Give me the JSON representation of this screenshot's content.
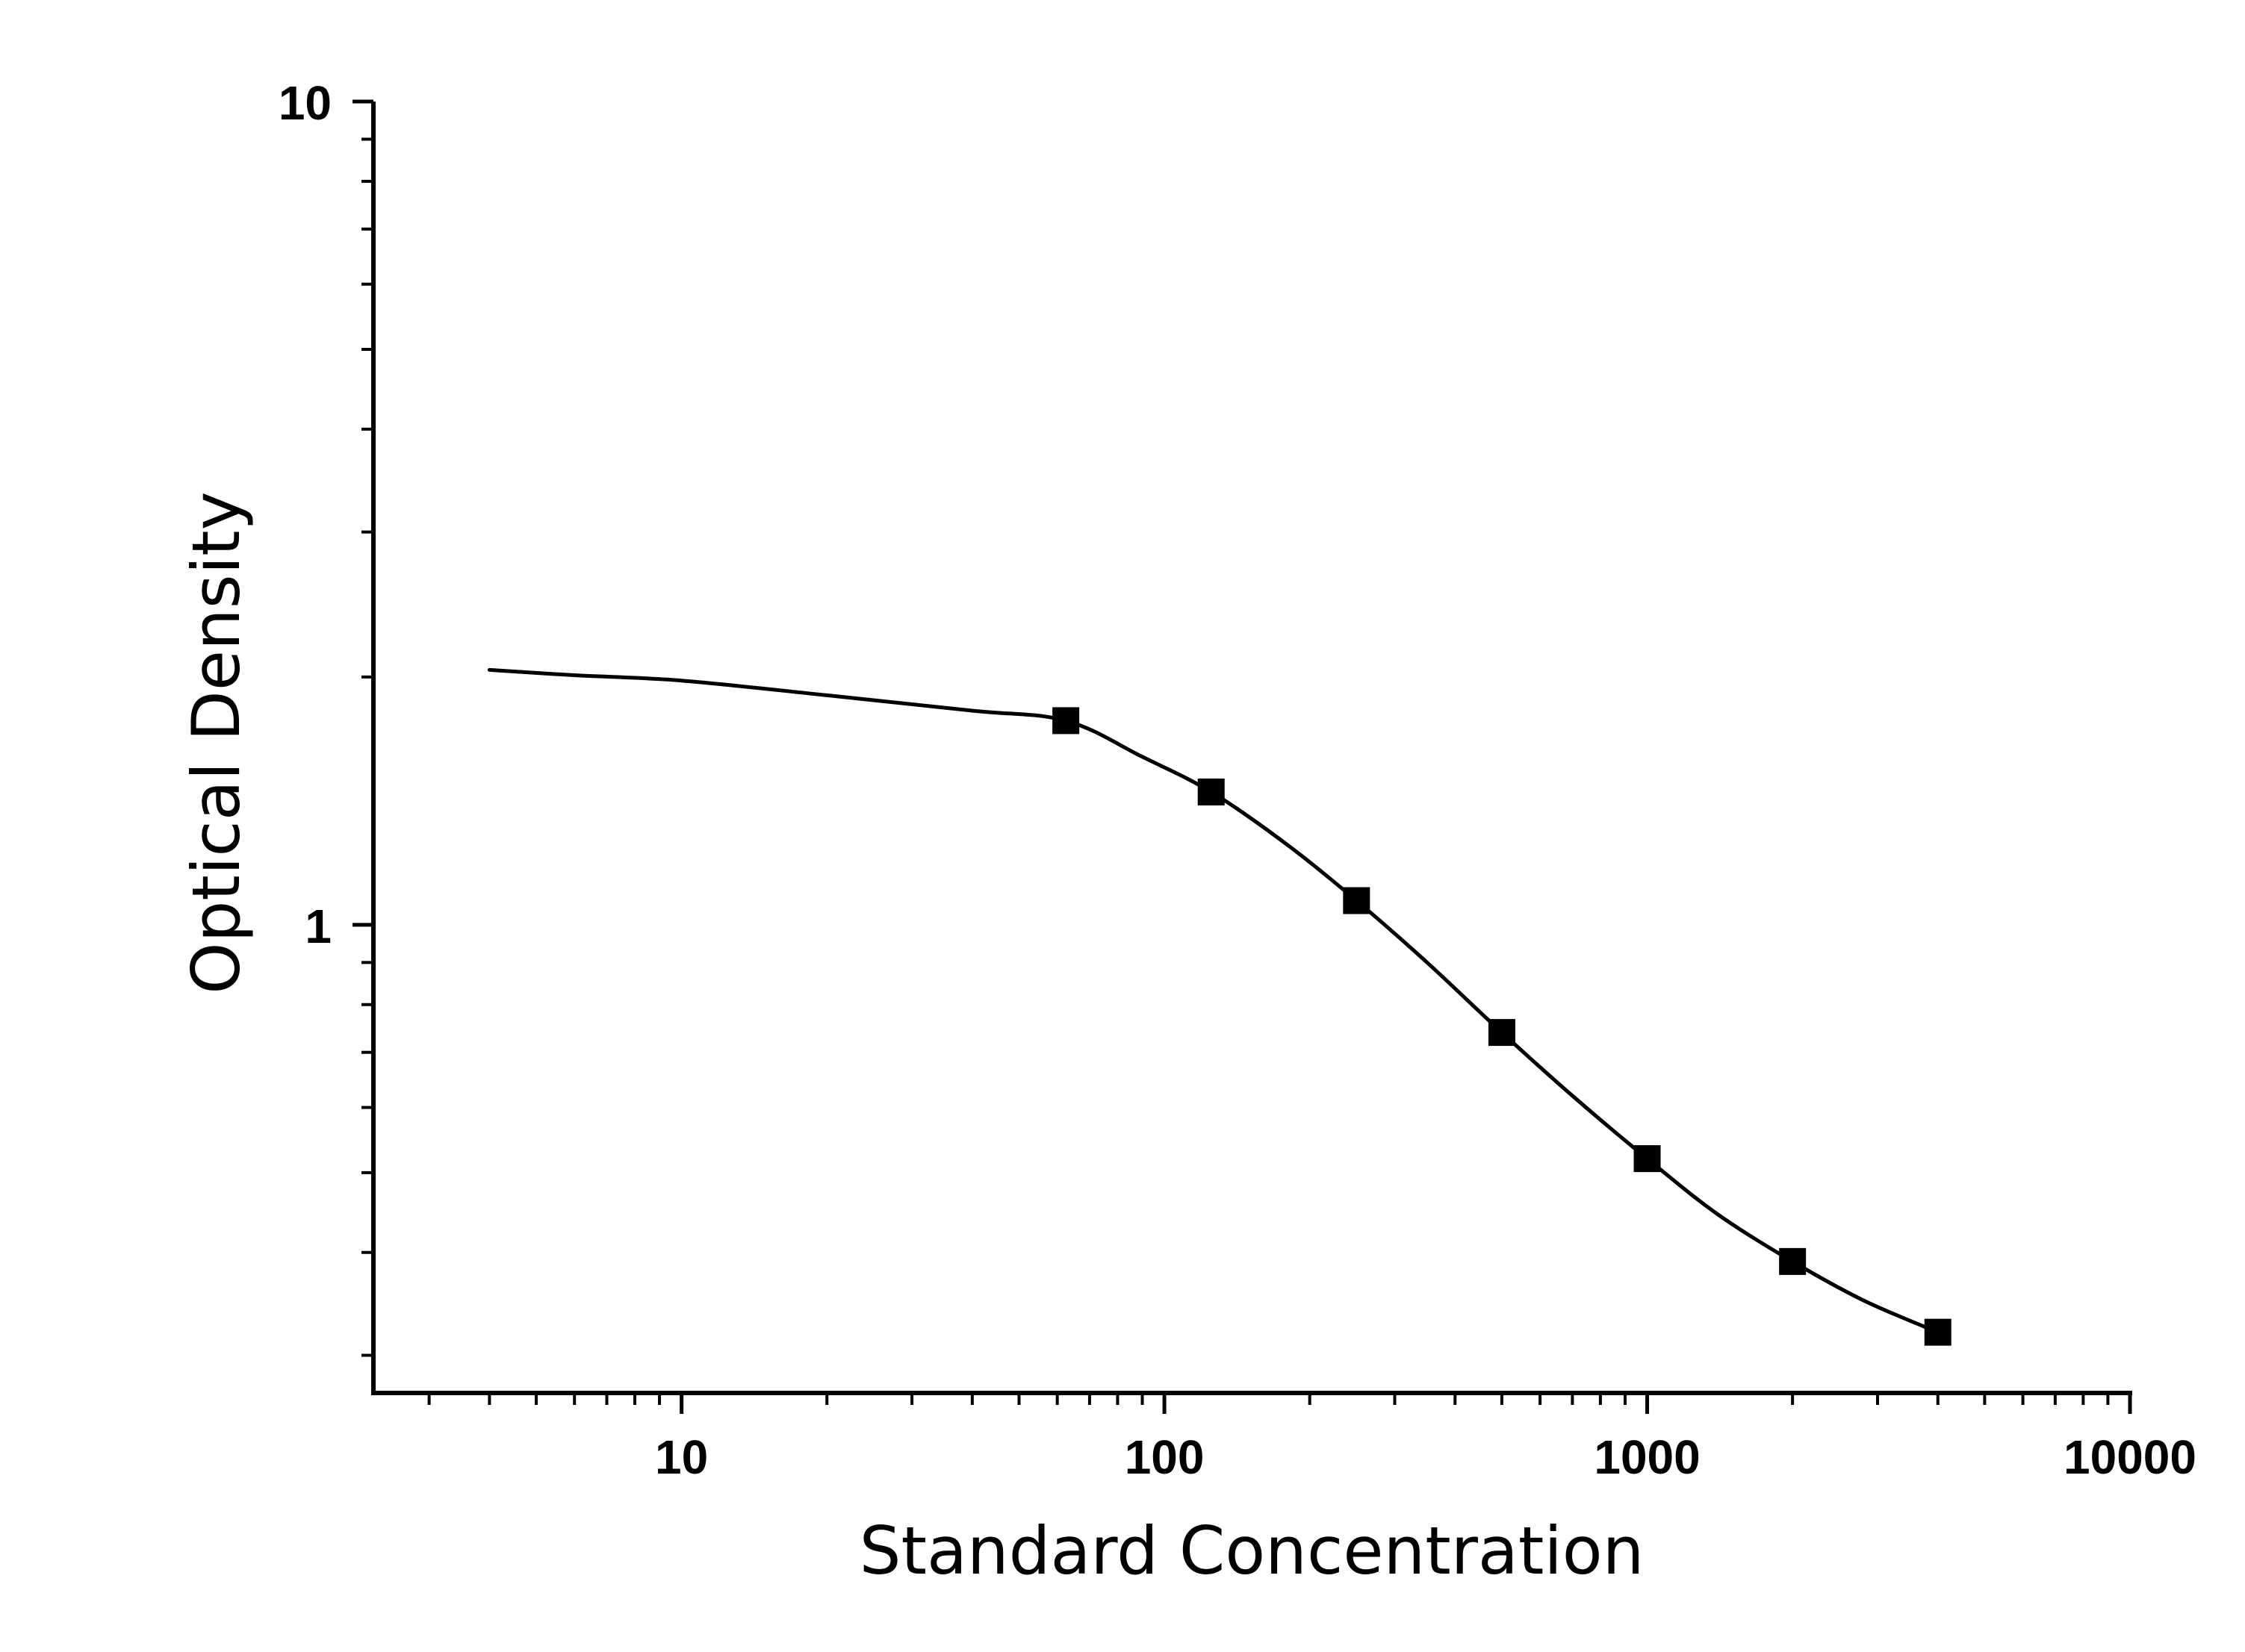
{
  "chart_data": {
    "type": "line",
    "title": "",
    "xlabel": "Standard Concentration",
    "ylabel": "Optical Density",
    "x_scale": "log",
    "y_scale": "log",
    "xlim": [
      2.3,
      10000
    ],
    "ylim": [
      0.27,
      10
    ],
    "x_ticks": [
      10,
      100,
      1000,
      10000
    ],
    "x_tick_labels": [
      "10",
      "100",
      "1000",
      "10000"
    ],
    "y_ticks": [
      1,
      10
    ],
    "y_tick_labels": [
      "1",
      "10"
    ],
    "grid": false,
    "legend": "none",
    "series": [
      {
        "marker": "square",
        "x": [
          62.5,
          125,
          250,
          500,
          1000,
          2000,
          4000
        ],
        "y": [
          1.77,
          1.45,
          1.07,
          0.74,
          0.52,
          0.39,
          0.32
        ]
      }
    ],
    "fit_curve": {
      "x": [
        4,
        6,
        10,
        20,
        40,
        62.5,
        90,
        125,
        180,
        250,
        350,
        500,
        700,
        1000,
        1400,
        2000,
        2800,
        4000
      ],
      "y": [
        2.04,
        2.01,
        1.98,
        1.9,
        1.82,
        1.77,
        1.6,
        1.45,
        1.25,
        1.07,
        0.9,
        0.74,
        0.62,
        0.52,
        0.445,
        0.39,
        0.35,
        0.32
      ]
    },
    "colors": {
      "line": "#000000",
      "marker": "#000000",
      "axis": "#000000"
    }
  }
}
